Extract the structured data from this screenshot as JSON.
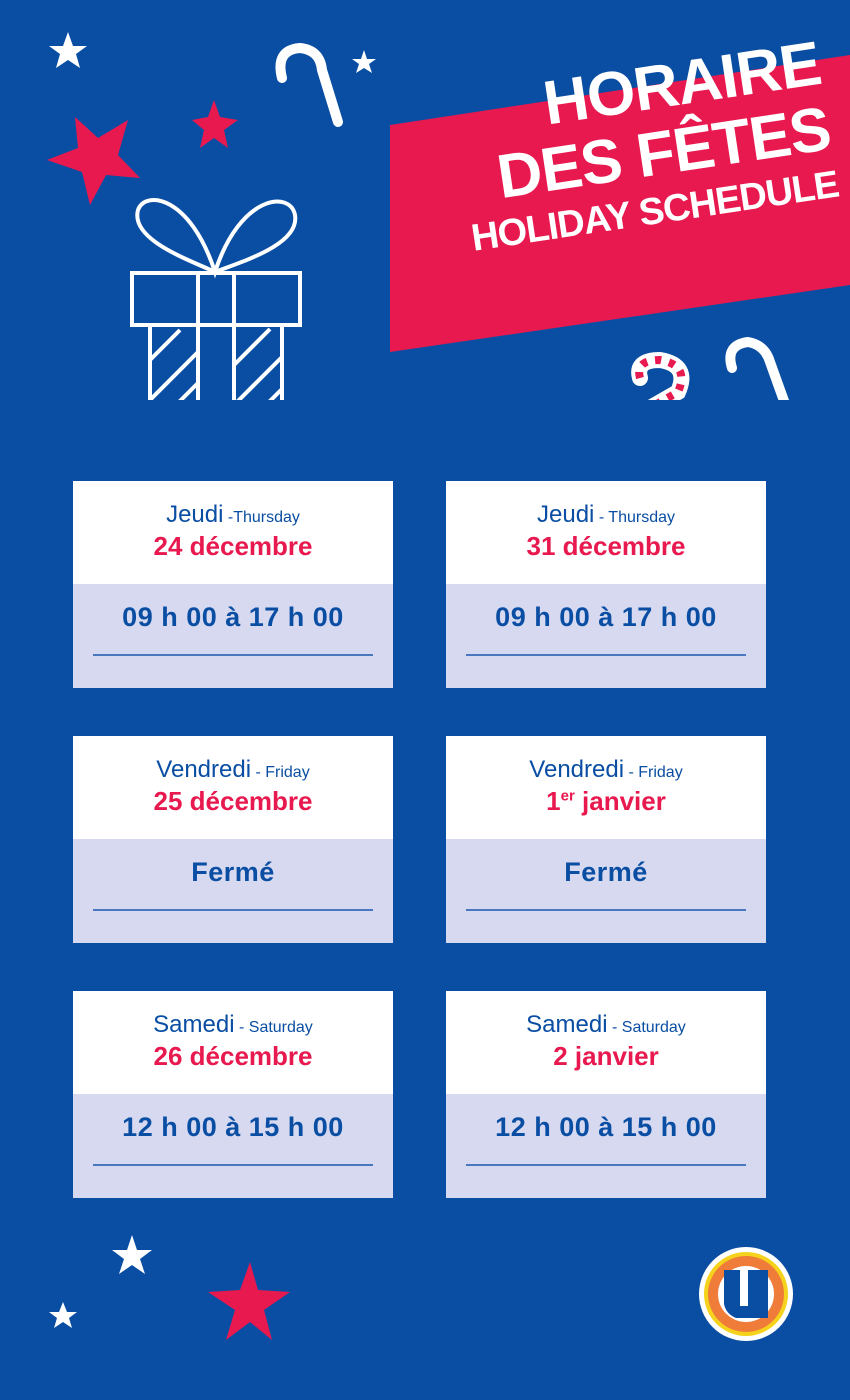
{
  "banner": {
    "line1": "HORAIRE",
    "line2": "DES FÊTES",
    "line3": "HOLIDAY SCHEDULE"
  },
  "colors": {
    "background": "#0a4ea3",
    "accent": "#e8194f",
    "card_bottom": "#d6d9ef"
  },
  "cards": [
    {
      "day": "Jeudi",
      "eng": " -Thursday",
      "date": "24 décembre",
      "sup": "",
      "hours": "09 h 00 à 17 h 00"
    },
    {
      "day": "Jeudi",
      "eng": " - Thursday",
      "date": "31 décembre",
      "sup": "",
      "hours": "09 h 00 à 17 h 00"
    },
    {
      "day": "Vendredi",
      "eng": " - Friday",
      "date": "25 décembre",
      "sup": "",
      "hours": "Fermé"
    },
    {
      "day": "Vendredi",
      "eng": " - Friday",
      "date": " janvier",
      "pre": "1",
      "sup": "er",
      "hours": "Fermé"
    },
    {
      "day": "Samedi",
      "eng": " - Saturday",
      "date": "26 décembre",
      "sup": "",
      "hours": "12 h 00 à 15 h 00"
    },
    {
      "day": "Samedi",
      "eng": " - Saturday",
      "date": "2 janvier",
      "sup": "",
      "hours": "12 h 00 à 15 h 00"
    }
  ],
  "logo": {
    "letter": "U"
  }
}
